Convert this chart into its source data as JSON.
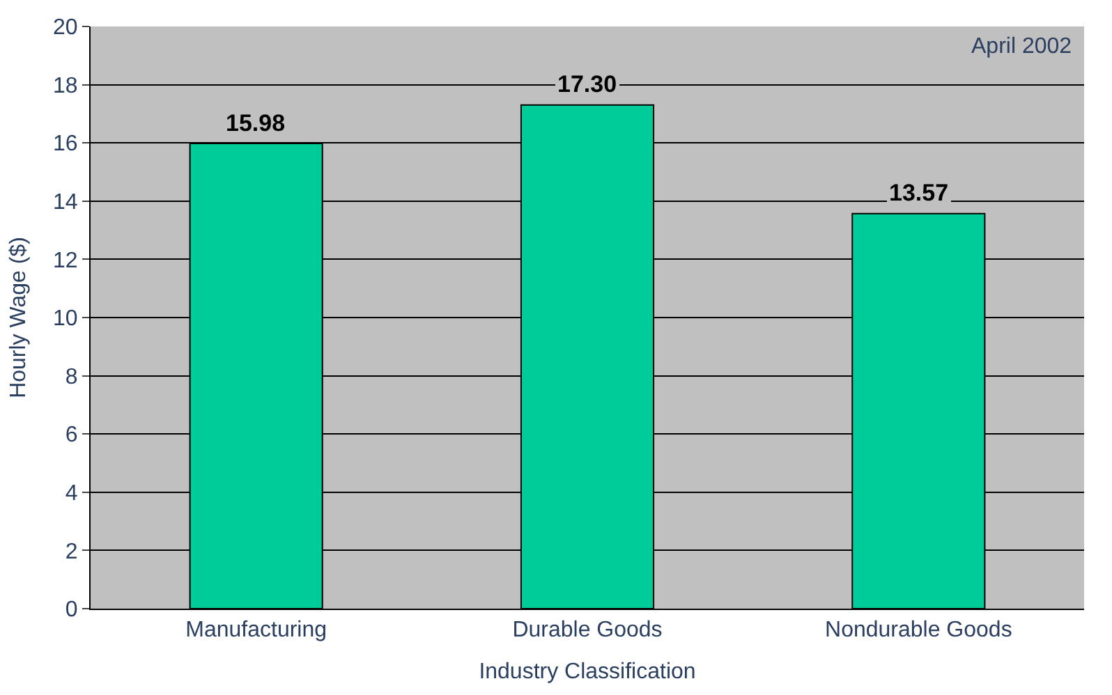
{
  "chart_data": {
    "type": "bar",
    "categories": [
      "Manufacturing",
      "Durable Goods",
      "Nondurable Goods"
    ],
    "values": [
      15.98,
      17.3,
      13.57
    ],
    "value_labels": [
      "15.98",
      "17.30",
      "13.57"
    ],
    "color": "#00cc99",
    "xlabel": "Industry Classification",
    "ylabel": "Hourly Wage ($)",
    "ylim": [
      0,
      20
    ],
    "yticks": [
      0,
      2,
      4,
      6,
      8,
      10,
      12,
      14,
      16,
      18,
      20
    ],
    "grid": "y",
    "annotations": [
      "April 2002"
    ]
  }
}
